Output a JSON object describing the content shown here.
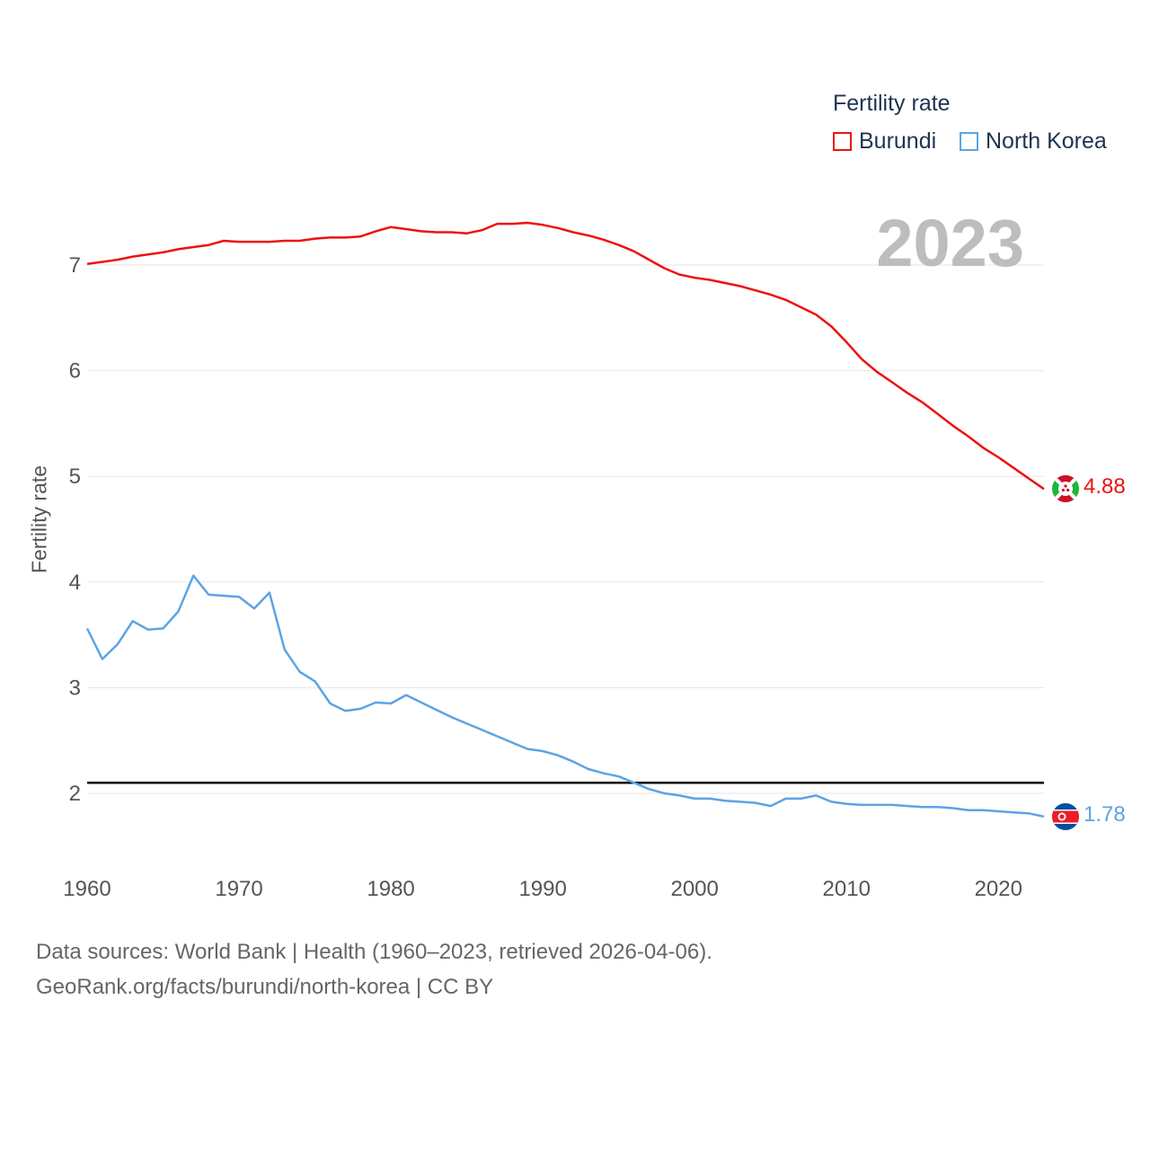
{
  "chart_data": {
    "type": "line",
    "ylabel": "Fertility rate",
    "xlabel": "",
    "year_label": "2023",
    "legend_title": "Fertility rate",
    "xlim": [
      1960,
      2023
    ],
    "ylim": [
      1.4,
      7.6
    ],
    "x_ticks": [
      1960,
      1970,
      1980,
      1990,
      2000,
      2010,
      2020
    ],
    "y_ticks": [
      2,
      3,
      4,
      5,
      6,
      7
    ],
    "reference_line": 2.1,
    "x": [
      1960,
      1961,
      1962,
      1963,
      1964,
      1965,
      1966,
      1967,
      1968,
      1969,
      1970,
      1971,
      1972,
      1973,
      1974,
      1975,
      1976,
      1977,
      1978,
      1979,
      1980,
      1981,
      1982,
      1983,
      1984,
      1985,
      1986,
      1987,
      1988,
      1989,
      1990,
      1991,
      1992,
      1993,
      1994,
      1995,
      1996,
      1997,
      1998,
      1999,
      2000,
      2001,
      2002,
      2003,
      2004,
      2005,
      2006,
      2007,
      2008,
      2009,
      2010,
      2011,
      2012,
      2013,
      2014,
      2015,
      2016,
      2017,
      2018,
      2019,
      2020,
      2021,
      2022,
      2023
    ],
    "series": [
      {
        "name": "Burundi",
        "color": "#ee1111",
        "end_label": "4.88",
        "values": [
          7.01,
          7.03,
          7.05,
          7.08,
          7.1,
          7.12,
          7.15,
          7.17,
          7.19,
          7.23,
          7.22,
          7.22,
          7.22,
          7.23,
          7.23,
          7.25,
          7.26,
          7.26,
          7.27,
          7.32,
          7.36,
          7.34,
          7.32,
          7.31,
          7.31,
          7.3,
          7.33,
          7.39,
          7.39,
          7.4,
          7.38,
          7.35,
          7.31,
          7.28,
          7.24,
          7.19,
          7.13,
          7.05,
          6.97,
          6.91,
          6.88,
          6.86,
          6.83,
          6.8,
          6.76,
          6.72,
          6.67,
          6.6,
          6.53,
          6.42,
          6.27,
          6.11,
          5.99,
          5.89,
          5.79,
          5.7,
          5.59,
          5.48,
          5.38,
          5.27,
          5.18,
          5.08,
          4.98,
          4.88
        ]
      },
      {
        "name": "North Korea",
        "color": "#5ba4e5",
        "end_label": "1.78",
        "values": [
          3.56,
          3.27,
          3.41,
          3.63,
          3.55,
          3.56,
          3.72,
          4.06,
          3.88,
          3.87,
          3.86,
          3.75,
          3.9,
          3.36,
          3.15,
          3.06,
          2.85,
          2.78,
          2.8,
          2.86,
          2.85,
          2.93,
          2.86,
          2.79,
          2.72,
          2.66,
          2.6,
          2.54,
          2.48,
          2.42,
          2.4,
          2.36,
          2.3,
          2.23,
          2.19,
          2.16,
          2.1,
          2.04,
          2.0,
          1.98,
          1.95,
          1.95,
          1.93,
          1.92,
          1.91,
          1.88,
          1.95,
          1.95,
          1.98,
          1.92,
          1.9,
          1.89,
          1.89,
          1.89,
          1.88,
          1.87,
          1.87,
          1.86,
          1.84,
          1.84,
          1.83,
          1.82,
          1.81,
          1.78
        ]
      }
    ]
  },
  "footer": {
    "line1": "Data sources: World Bank | Health (1960–2023, retrieved 2026-04-06).",
    "line2": "GeoRank.org/facts/burundi/north-korea | CC BY"
  }
}
